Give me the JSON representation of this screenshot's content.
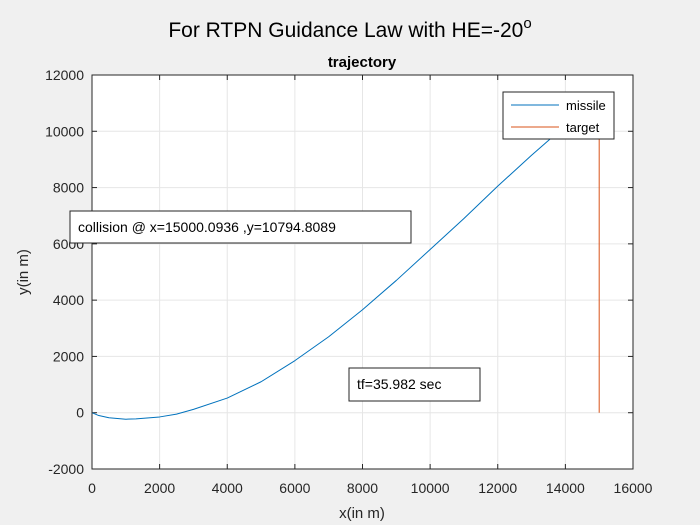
{
  "figure": {
    "suptitle_main": "For RTPN Guidance Law with HE=-20",
    "suptitle_sup": "o"
  },
  "chart_data": {
    "type": "line",
    "title": "trajectory",
    "xlabel": "x(in m)",
    "ylabel": "y(in m)",
    "xlim": [
      0,
      16000
    ],
    "ylim": [
      -2000,
      12000
    ],
    "xticks": [
      0,
      2000,
      4000,
      6000,
      8000,
      10000,
      12000,
      14000,
      16000
    ],
    "yticks": [
      -2000,
      0,
      2000,
      4000,
      6000,
      8000,
      10000,
      12000
    ],
    "grid": true,
    "legend_position": "top-right",
    "series": [
      {
        "name": "missile",
        "color": "#0072bd",
        "x": [
          0,
          200,
          500,
          1000,
          1300,
          2000,
          2500,
          3000,
          4000,
          5000,
          6000,
          7000,
          8000,
          9000,
          10000,
          11000,
          12000,
          13000,
          14000,
          14500,
          15000
        ],
        "y": [
          0,
          -100,
          -180,
          -230,
          -220,
          -150,
          -50,
          120,
          520,
          1100,
          1850,
          2700,
          3660,
          4700,
          5800,
          6900,
          8050,
          9150,
          10200,
          10550,
          10795
        ]
      },
      {
        "name": "target",
        "color": "#d95319",
        "x": [
          15000,
          15000
        ],
        "y": [
          0,
          10795
        ]
      }
    ],
    "annotations": [
      {
        "text": "collision @ x=15000.0936 ,y=10794.8089"
      },
      {
        "text": "tf=35.982 sec"
      }
    ]
  }
}
